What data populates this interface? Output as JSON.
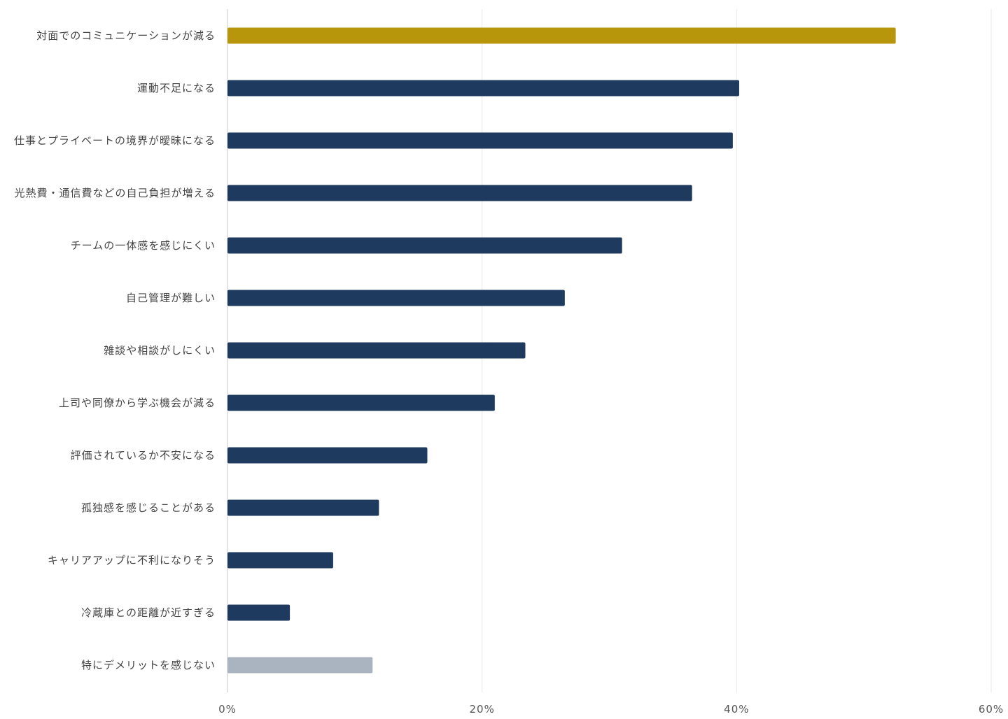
{
  "chart_data": {
    "type": "bar",
    "orientation": "horizontal",
    "title": "",
    "xlabel": "",
    "ylabel": "",
    "xlim": [
      0,
      60
    ],
    "x_ticks": [
      0,
      20,
      40,
      60
    ],
    "x_tick_labels": [
      "0%",
      "20%",
      "40%",
      "60%"
    ],
    "unit": "%",
    "grid": true,
    "legend": "none",
    "categories": [
      "対面でのコミュニケーションが減る",
      "運動不足になる",
      "仕事とプライベートの境界が曖昧になる",
      "光熱費・通信費などの自己負担が増える",
      "チームの一体感を感じにくい",
      "自己管理が難しい",
      "雑談や相談がしにくい",
      "上司や同僚から学ぶ機会が減る",
      "評価されているか不安になる",
      "孤独感を感じることがある",
      "キャリアアップに不利になりそう",
      "冷蔵庫との距離が近すぎる",
      "特にデメリットを感じない"
    ],
    "values": [
      52.5,
      40.2,
      39.7,
      36.5,
      31,
      26.5,
      23.4,
      21,
      15.7,
      11.9,
      8.3,
      4.9,
      11.4
    ],
    "colors": {
      "highlight": "#b8960c",
      "default": "#1f3a5f",
      "neutral": "#a9b4c0"
    },
    "bar_color_keys": [
      "highlight",
      "default",
      "default",
      "default",
      "default",
      "default",
      "default",
      "default",
      "default",
      "default",
      "default",
      "default",
      "neutral"
    ]
  }
}
